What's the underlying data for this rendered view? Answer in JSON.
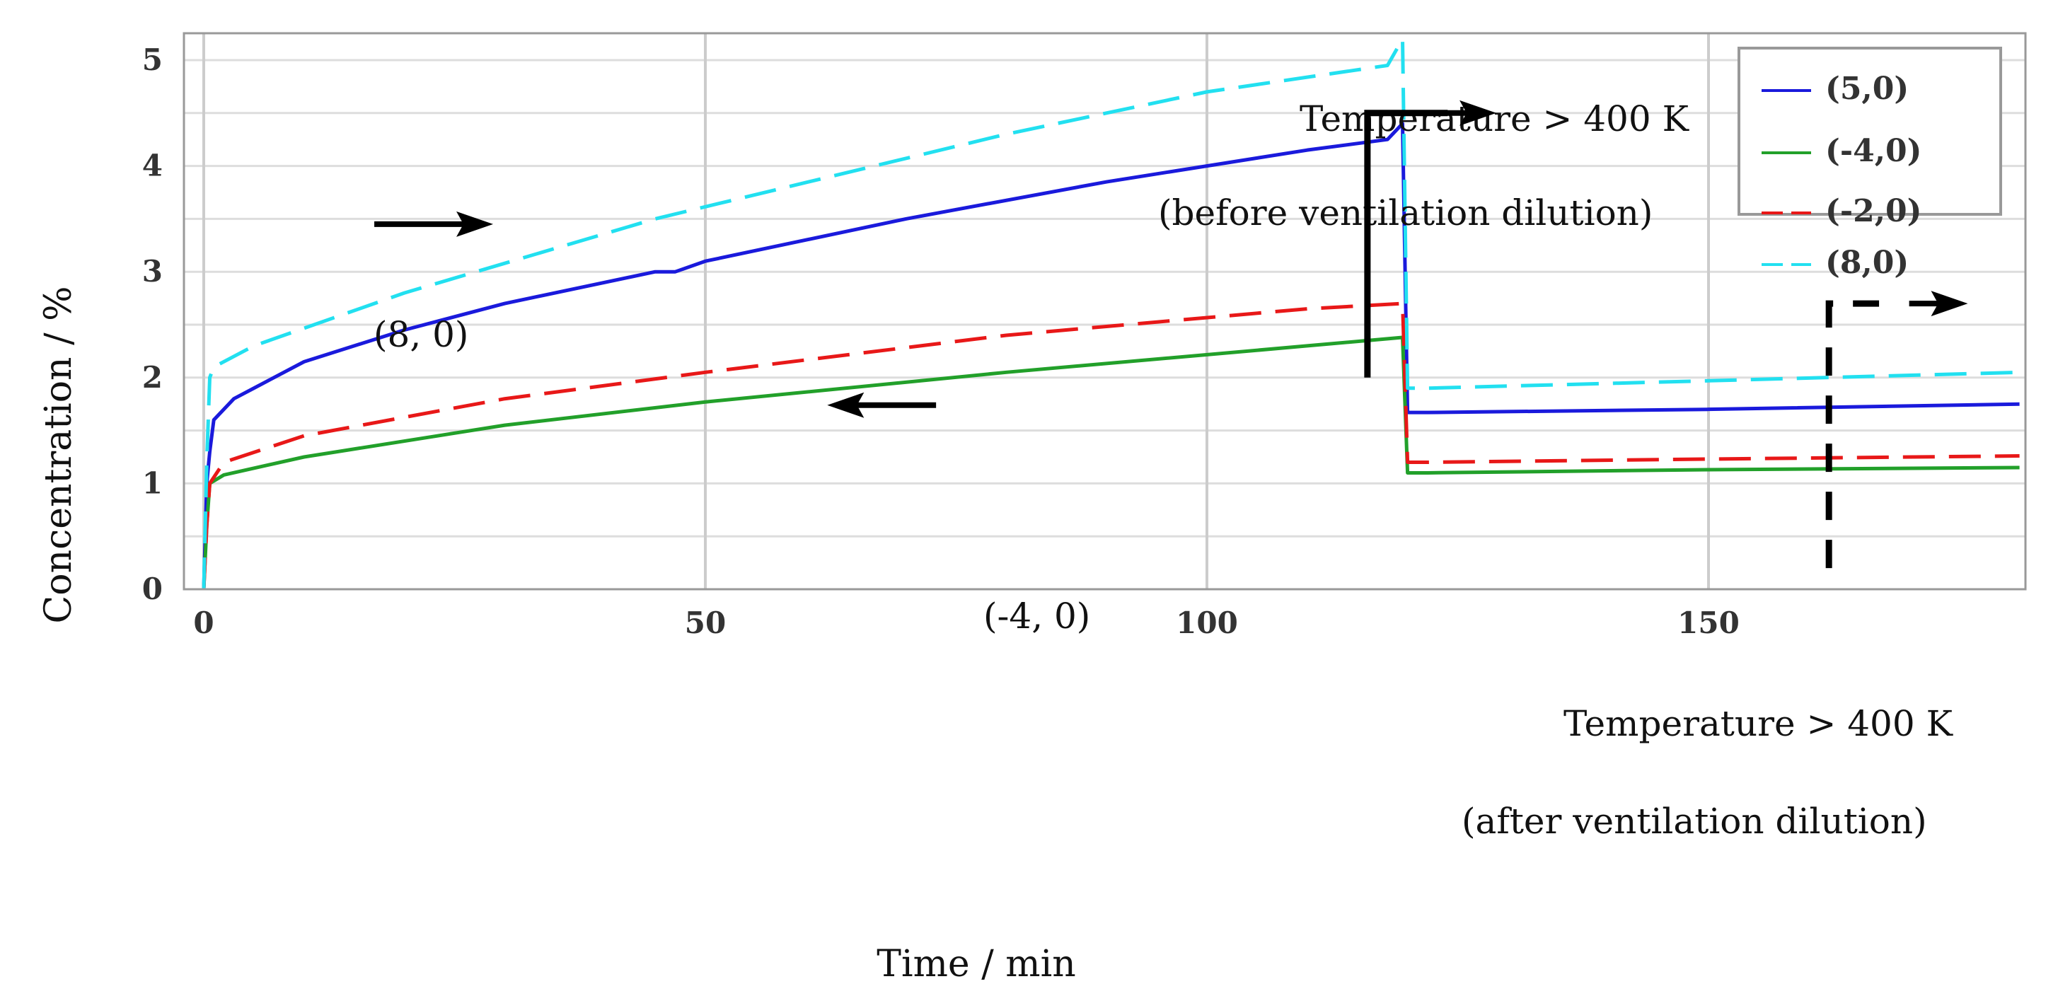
{
  "chart_data": {
    "type": "line",
    "title": "",
    "xlabel": "Time / min",
    "ylabel": "Concentration / %",
    "xlim": [
      -1,
      181.6
    ],
    "ylim": [
      -0.05,
      5.25
    ],
    "xticks": [
      0,
      50,
      100,
      150
    ],
    "yticks": [
      0,
      1,
      2,
      3,
      4,
      5
    ],
    "grid": true,
    "legend_position": "top-right",
    "series": [
      {
        "name": "(5,0)",
        "color": "#1a1adc",
        "dash": "solid",
        "x": [
          0,
          0.3,
          0.6,
          1,
          3,
          5,
          10,
          20,
          30,
          45,
          47,
          50,
          70,
          90,
          110,
          118,
          119.5,
          120,
          122,
          150,
          181
        ],
        "y": [
          0,
          1.0,
          1.3,
          1.6,
          1.8,
          1.9,
          2.15,
          2.45,
          2.7,
          3.0,
          3.0,
          3.1,
          3.5,
          3.85,
          4.15,
          4.25,
          4.4,
          1.67,
          1.67,
          1.7,
          1.75
        ]
      },
      {
        "name": "(-4,0)",
        "color": "#22a02a",
        "dash": "solid",
        "x": [
          0,
          0.3,
          0.6,
          2,
          10,
          30,
          50,
          80,
          110,
          119.5,
          120,
          122,
          150,
          181
        ],
        "y": [
          0,
          0.6,
          1.0,
          1.08,
          1.25,
          1.55,
          1.77,
          2.05,
          2.3,
          2.38,
          1.1,
          1.1,
          1.13,
          1.15
        ]
      },
      {
        "name": "(-2,0)",
        "color": "#e81818",
        "dash": "dashed",
        "x": [
          0,
          0.3,
          0.6,
          2,
          10,
          30,
          50,
          80,
          110,
          119.5,
          120,
          122,
          150,
          181
        ],
        "y": [
          0,
          0.6,
          1.0,
          1.2,
          1.45,
          1.8,
          2.05,
          2.4,
          2.65,
          2.7,
          1.2,
          1.2,
          1.23,
          1.26
        ]
      },
      {
        "name": "(8,0)",
        "color": "#22e0f0",
        "dash": "dashed",
        "x": [
          0,
          0.3,
          0.6,
          1,
          5,
          20,
          45,
          80,
          100,
          118,
          119.5,
          120,
          122,
          150,
          181
        ],
        "y": [
          0,
          1.2,
          2.0,
          2.1,
          2.3,
          2.8,
          3.5,
          4.3,
          4.7,
          4.95,
          5.2,
          1.9,
          1.9,
          1.97,
          2.05
        ]
      }
    ],
    "annotations": {
      "before_line1": "Temperature > 400 K",
      "before_line2": "(before ventilation dilution)",
      "after_line1": "Temperature > 400 K",
      "after_line2": "(after ventilation dilution)",
      "label_8_0": "(8, 0)",
      "label_m4_0": "(-4, 0)"
    }
  }
}
